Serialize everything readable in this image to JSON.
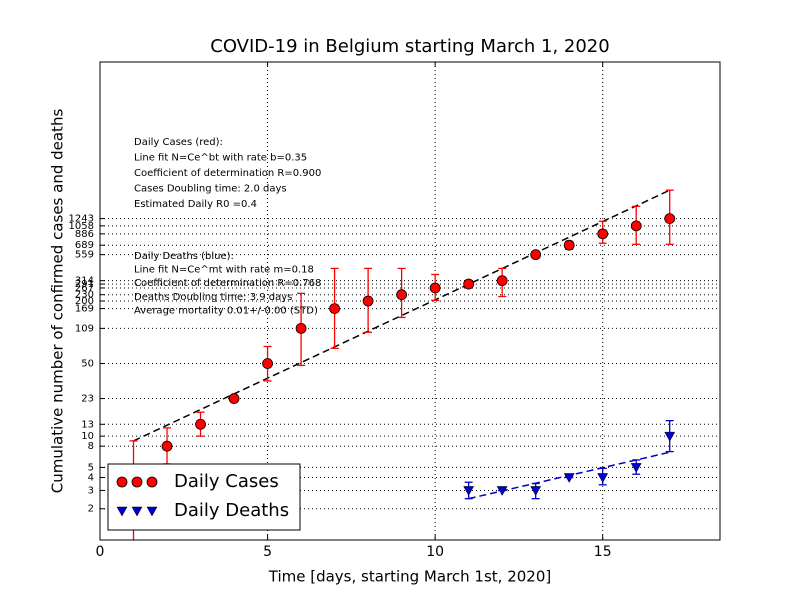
{
  "chart_data": {
    "type": "scatter",
    "title": "COVID-19 in Belgium starting March 1, 2020",
    "x_label": "Time [days, starting March 1st, 2020]",
    "y_label": "Cumulative number of confirmed cases and deaths",
    "xlim": [
      0,
      18.5
    ],
    "xticks": [
      0,
      5,
      10,
      15
    ],
    "ylim": [
      1,
      40000
    ],
    "y_scale": "log",
    "yticks": [
      2,
      3,
      4,
      5,
      8,
      10,
      13,
      23,
      50,
      109,
      169,
      200,
      230,
      267,
      291,
      314,
      559,
      689,
      886,
      1058,
      1243
    ],
    "grid": true,
    "legend": "lower left",
    "series": [
      {
        "name": "Daily Cases",
        "color": "#ff0000",
        "marker": "circle",
        "x": [
          1,
          2,
          3,
          4,
          5,
          6,
          7,
          8,
          9,
          10,
          11,
          12,
          13,
          14,
          15,
          16,
          17
        ],
        "values": [
          2,
          8,
          13,
          23,
          50,
          109,
          169,
          200,
          230,
          267,
          291,
          314,
          559,
          689,
          886,
          1058,
          1243
        ],
        "yerr_minus": [
          1.5,
          2.6,
          3,
          0,
          16,
          61,
          99,
          100,
          91,
          64,
          20,
          93,
          0,
          60,
          166,
          355,
          540
        ],
        "yerr_plus": [
          7,
          4,
          4,
          0,
          23,
          128,
          243,
          212,
          182,
          93,
          20,
          98,
          0,
          60,
          286,
          575,
          1090
        ],
        "fit": {
          "color": "#000000",
          "x": [
            1,
            17
          ],
          "values": [
            9,
            2333
          ]
        }
      },
      {
        "name": "Daily Deaths",
        "color": "#0000cc",
        "marker": "triangle-down",
        "x": [
          11,
          12,
          13,
          14,
          15,
          16,
          17
        ],
        "values": [
          3,
          3,
          3,
          4,
          4,
          5,
          10
        ],
        "yerr_minus": [
          0.5,
          0,
          0.5,
          0,
          0.6,
          0.7,
          2.9
        ],
        "yerr_plus": [
          0.6,
          0,
          0.5,
          0,
          0.9,
          0.9,
          4.1
        ],
        "fit": {
          "color": "#0000cc",
          "x": [
            11,
            17
          ],
          "values": [
            2.5,
            7
          ]
        }
      }
    ],
    "annotations": [
      [
        "Daily Cases (red):",
        "Line fit N=Ce^bt with rate b=0.35",
        "Coefficient of determination R=0.900",
        "Cases Doubling time: 2.0 days",
        "Estimated Daily R0 =0.4"
      ],
      [
        "Daily Deaths (blue):",
        "Line fit N=Ce^mt with rate m=0.18",
        "Coefficient of determination R=0.768",
        "Deaths Doubling time: 3.9 days",
        "Average mortality 0.01+/-0.00 (STD)"
      ]
    ]
  }
}
